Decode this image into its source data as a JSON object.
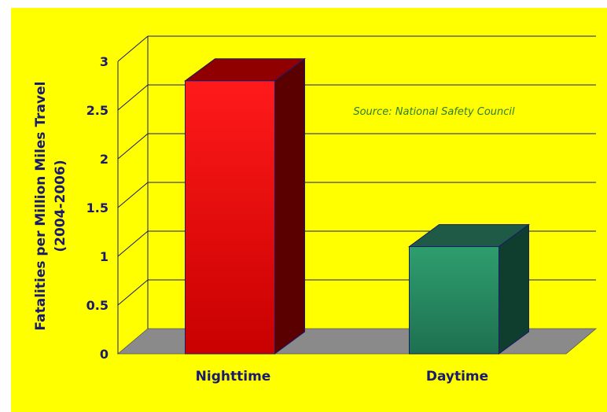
{
  "chart_data": {
    "type": "bar",
    "categories": [
      "Nighttime",
      "Daytime"
    ],
    "values": [
      2.8,
      1.1
    ],
    "ylabel_line1": "Fatalities per Million Miles Travel",
    "ylabel_line2": "(2004-2006)",
    "ylim": [
      0,
      3
    ],
    "yticks": [
      "0",
      "0.5",
      "1",
      "1.5",
      "2",
      "2.5",
      "3"
    ],
    "annotation": "Source: National Safety Council",
    "grid": true,
    "three_d": true,
    "colors": {
      "background": "#ffff00",
      "floor": "#8a8a8a",
      "gridline": "#1a1a6e",
      "axis_text": "#1a1a6e",
      "annotation_text": "#2e7d2e",
      "bar_front_top": [
        "#ff1a1a",
        "#2e9e6e"
      ],
      "bar_front_bottom": [
        "#c80000",
        "#1e7050"
      ],
      "bar_side": [
        "#5a0000",
        "#0f3d2e"
      ],
      "bar_top": [
        "#900000",
        "#1e5a45"
      ]
    }
  }
}
